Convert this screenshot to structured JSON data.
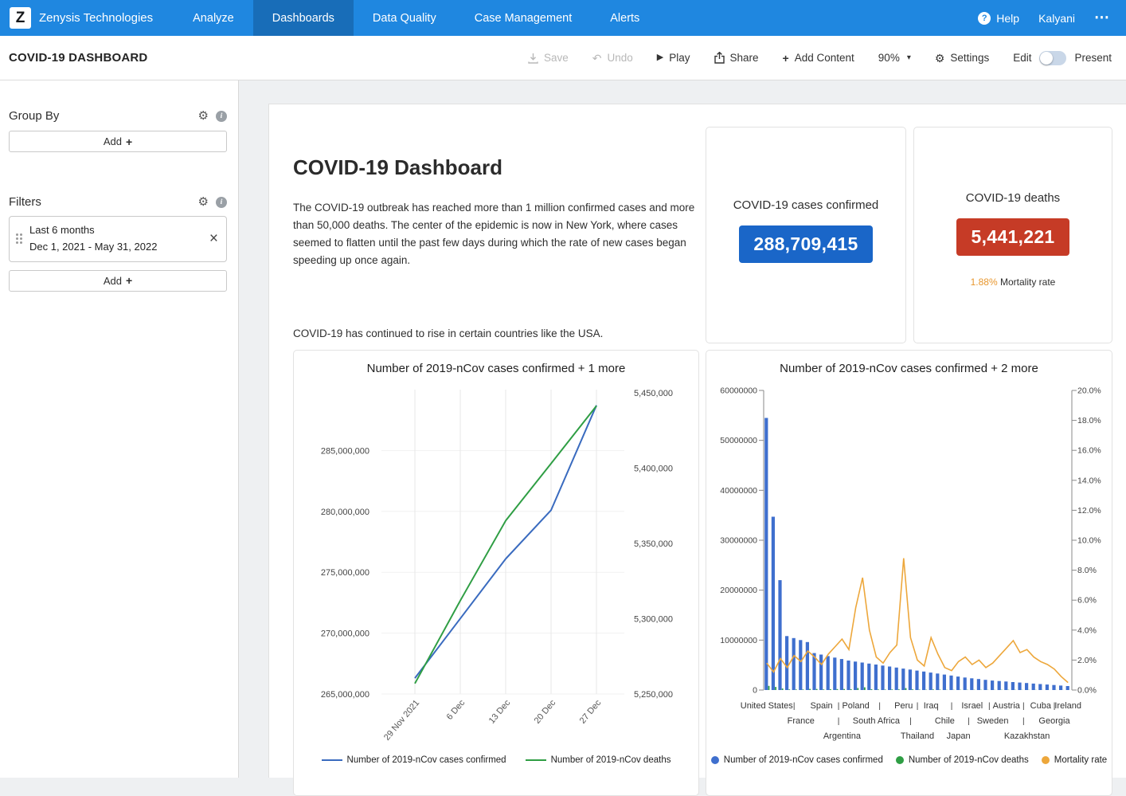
{
  "icons": {
    "logo": "Z",
    "help": "?",
    "more": "⋯",
    "undo": "↶",
    "play": "▶",
    "plus": "+",
    "caret": "▾",
    "gear": "⚙",
    "info": "i",
    "close": "×"
  },
  "colors": {
    "navbar_bg": "#1f87e0",
    "navbar_active_bg": "#186db8",
    "cases_box_bg": "#1a66c8",
    "deaths_box_bg": "#c63b26",
    "mortality_orange": "#e8972e",
    "cases_blue": "#3a6bbf",
    "deaths_green": "#2f9e44",
    "bar_blue": "#3f6fce",
    "rate_orange": "#eda73b"
  },
  "navbar": {
    "brand": "Zenysis Technologies",
    "items": [
      {
        "label": "Analyze",
        "active": false
      },
      {
        "label": "Dashboards",
        "active": true
      },
      {
        "label": "Data Quality",
        "active": false
      },
      {
        "label": "Case Management",
        "active": false
      },
      {
        "label": "Alerts",
        "active": false
      }
    ],
    "help_label": "Help",
    "user_name": "Kalyani"
  },
  "toolbar": {
    "title": "COVID-19 DASHBOARD",
    "save_label": "Save",
    "undo_label": "Undo",
    "play_label": "Play",
    "share_label": "Share",
    "add_content_label": "Add Content",
    "zoom_level": "90%",
    "settings_label": "Settings",
    "edit_label": "Edit",
    "present_label": "Present"
  },
  "sidebar": {
    "group_by": {
      "title": "Group By",
      "add_label": "Add"
    },
    "filters": {
      "title": "Filters",
      "add_label": "Add",
      "items": [
        {
          "title": "Last 6 months",
          "range": "Dec 1, 2021 - May 31, 2022"
        }
      ]
    }
  },
  "main": {
    "title": "COVID-19 Dashboard",
    "description": "The COVID-19 outbreak has reached more than 1 million confirmed cases and more than 50,000 deaths. The center of the epidemic is now in New York, where cases seemed to flatten until the past few days during which the rate of new cases began speeding up once again.",
    "note": "COVID-19 has continued to rise in certain countries like the USA.",
    "stat_cards": [
      {
        "title": "COVID-19 cases confirmed",
        "value": "288,709,415",
        "color": "#1a66c8"
      },
      {
        "title": "COVID-19 deaths",
        "value": "5,441,221",
        "color": "#c63b26",
        "footnote_value": "1.88%",
        "footnote_label": "Mortality rate"
      }
    ]
  },
  "chart_data": [
    {
      "type": "line",
      "title": "Number of 2019-nCov cases confirmed + 1 more",
      "x": [
        "29 Nov 2021",
        "6 Dec",
        "13 Dec",
        "20 Dec",
        "27 Dec"
      ],
      "series": [
        {
          "name": "Number of 2019-nCov cases confirmed",
          "axis": "left",
          "color": "#3a6bbf",
          "values": [
            266300000,
            271200000,
            276100000,
            280100000,
            288709415
          ]
        },
        {
          "name": "Number of 2019-nCov deaths",
          "axis": "right",
          "color": "#2f9e44",
          "values": [
            5257000,
            5312000,
            5365000,
            5403000,
            5441221
          ]
        }
      ],
      "left_axis": {
        "min": 265000000,
        "max": 290000000,
        "tick_values": [
          265000000,
          270000000,
          275000000,
          280000000,
          285000000
        ]
      },
      "right_axis": {
        "min": 5250000,
        "max": 5452000,
        "tick_values": [
          5250000,
          5300000,
          5350000,
          5400000,
          5450000
        ]
      },
      "grid": true,
      "legend_position": "bottom"
    },
    {
      "type": "bar",
      "title": "Number of 2019-nCov cases confirmed + 2 more",
      "series": [
        {
          "name": "Number of 2019-nCov cases confirmed",
          "axis": "left",
          "color": "#3f6fce",
          "render": "bar",
          "values": [
            54500000,
            34700000,
            22000000,
            10800000,
            10400000,
            10000000,
            9600000,
            7400000,
            7100000,
            6800000,
            6500000,
            6200000,
            5900000,
            5700000,
            5500000,
            5300000,
            5100000,
            4900000,
            4700000,
            4500000,
            4300000,
            4100000,
            3900000,
            3700000,
            3500000,
            3300000,
            3100000,
            2900000,
            2700000,
            2500000,
            2350000,
            2200000,
            2050000,
            1900000,
            1800000,
            1700000,
            1600000,
            1500000,
            1400000,
            1300000,
            1200000,
            1100000,
            1000000,
            900000,
            800000
          ]
        },
        {
          "name": "Number of 2019-nCov deaths",
          "axis": "left",
          "color": "#2f9e44",
          "render": "bar",
          "values": [
            830000,
            620000,
            300000,
            120000,
            115000,
            110000,
            230000,
            200000,
            120000,
            160000,
            190000,
            210000,
            160000,
            400000,
            550000,
            160000,
            110000,
            90000,
            120000,
            130000,
            380000,
            140000,
            80000,
            60000,
            130000,
            80000,
            50000,
            40000,
            50000,
            55000,
            40000,
            45000,
            30000,
            35000,
            40000,
            48000,
            53000,
            38000,
            38000,
            29000,
            23000,
            19000,
            14000,
            8000,
            4000
          ]
        },
        {
          "name": "Mortality rate",
          "axis": "right",
          "color": "#eda73b",
          "render": "line",
          "values": [
            1.8,
            1.2,
            2.1,
            1.5,
            2.3,
            1.9,
            2.6,
            2.2,
            1.7,
            2.4,
            2.9,
            3.4,
            2.7,
            5.5,
            7.5,
            4.0,
            2.2,
            1.8,
            2.5,
            3.0,
            8.8,
            3.5,
            2.0,
            1.6,
            3.5,
            2.4,
            1.5,
            1.3,
            1.9,
            2.2,
            1.7,
            2.0,
            1.5,
            1.8,
            2.3,
            2.8,
            3.3,
            2.5,
            2.7,
            2.2,
            1.9,
            1.7,
            1.4,
            0.9,
            0.5
          ]
        }
      ],
      "x_labels": [
        {
          "label": "United States",
          "bar": 0,
          "row": 1
        },
        {
          "label": "France",
          "bar": 5,
          "row": 2
        },
        {
          "label": "Spain",
          "bar": 8,
          "row": 1
        },
        {
          "label": "Argentina",
          "bar": 11,
          "row": 3
        },
        {
          "label": "Poland",
          "bar": 13,
          "row": 1
        },
        {
          "label": "South Africa",
          "bar": 16,
          "row": 2
        },
        {
          "label": "Peru",
          "bar": 20,
          "row": 1
        },
        {
          "label": "Thailand",
          "bar": 22,
          "row": 3
        },
        {
          "label": "Iraq",
          "bar": 24,
          "row": 1
        },
        {
          "label": "Chile",
          "bar": 26,
          "row": 2
        },
        {
          "label": "Japan",
          "bar": 28,
          "row": 3
        },
        {
          "label": "Israel",
          "bar": 30,
          "row": 1
        },
        {
          "label": "Sweden",
          "bar": 33,
          "row": 2
        },
        {
          "label": "Austria",
          "bar": 35,
          "row": 1
        },
        {
          "label": "Kazakhstan",
          "bar": 38,
          "row": 3
        },
        {
          "label": "Cuba",
          "bar": 40,
          "row": 1
        },
        {
          "label": "Georgia",
          "bar": 42,
          "row": 2
        },
        {
          "label": "Ireland",
          "bar": 44,
          "row": 1
        }
      ],
      "left_axis": {
        "min": 0,
        "max": 60000000,
        "step": 10000000,
        "format": "plain"
      },
      "right_axis": {
        "min": 0,
        "max": 20,
        "step": 2,
        "format": "percent"
      },
      "legend_position": "bottom"
    }
  ]
}
